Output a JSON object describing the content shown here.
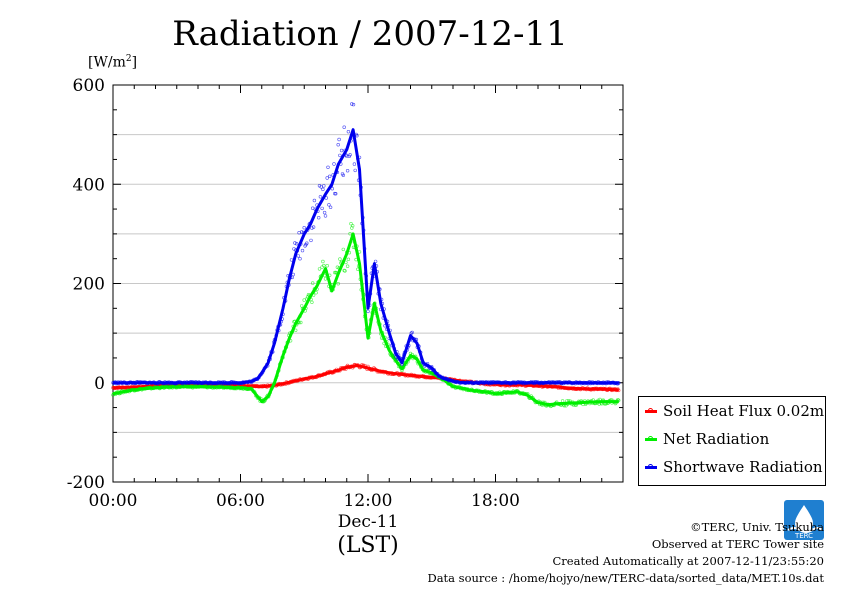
{
  "chart_data": {
    "type": "line",
    "title": "Radiation / 2007-12-11",
    "ylabel_unit": "[W/m",
    "ylabel_unit_sup": "2",
    "ylabel_unit_close": "]",
    "ylim": [
      -200,
      600
    ],
    "yticks": [
      -200,
      0,
      200,
      400,
      600
    ],
    "yticklabels": [
      "-200",
      "0",
      "200",
      "400",
      "600"
    ],
    "xlim": [
      0,
      24
    ],
    "xticks": [
      0,
      6,
      12,
      18
    ],
    "xticklabels": [
      "00:00",
      "06:00",
      "12:00",
      "18:00"
    ],
    "x_date_label": "Dec-11",
    "xlabel": "(LST)",
    "grid": true,
    "legend_position": "right-bottom-outside",
    "series": [
      {
        "name": "Soil Heat Flux 0.02m",
        "color": "#ff0000",
        "x": [
          0,
          1,
          2,
          3,
          4,
          5,
          6,
          6.5,
          7,
          7.5,
          8,
          8.5,
          9,
          9.5,
          10,
          10.5,
          11,
          11.5,
          12,
          12.5,
          13,
          13.5,
          14,
          14.5,
          15,
          15.5,
          16,
          16.5,
          17,
          17.5,
          18,
          18.5,
          19,
          19.5,
          20,
          21,
          22,
          23,
          23.8
        ],
        "y": [
          -10,
          -9,
          -6,
          -4,
          -3,
          -4,
          -6,
          -7,
          -8,
          -6,
          -2,
          3,
          8,
          12,
          18,
          24,
          31,
          35,
          30,
          24,
          20,
          17,
          15,
          13,
          11,
          9,
          6,
          3,
          0,
          -2,
          -3,
          -4,
          -4,
          -5,
          -6,
          -9,
          -12,
          -13,
          -14
        ]
      },
      {
        "name": "Net Radiation",
        "color": "#00ee00",
        "x": [
          0,
          0.5,
          1,
          2,
          3,
          4,
          5,
          6,
          6.5,
          7,
          7.3,
          7.6,
          8,
          8.3,
          8.6,
          9,
          9.3,
          9.6,
          10,
          10.3,
          10.6,
          11,
          11.3,
          11.6,
          12,
          12.3,
          12.6,
          13,
          13.3,
          13.6,
          14,
          14.3,
          14.6,
          15,
          15.3,
          15.6,
          16,
          16.5,
          17,
          17.5,
          18,
          18.5,
          19,
          19.5,
          20,
          20.5,
          21,
          22,
          23,
          23.8
        ],
        "y": [
          -22,
          -18,
          -14,
          -10,
          -8,
          -8,
          -9,
          -10,
          -12,
          -38,
          -28,
          0,
          55,
          90,
          120,
          150,
          175,
          195,
          230,
          185,
          220,
          260,
          300,
          240,
          90,
          160,
          105,
          65,
          45,
          28,
          55,
          48,
          25,
          20,
          12,
          5,
          -8,
          -12,
          -16,
          -18,
          -22,
          -20,
          -18,
          -25,
          -40,
          -44,
          -42,
          -40,
          -38,
          -38
        ]
      },
      {
        "name": "Shortwave Radiation",
        "color": "#0000ee",
        "x": [
          0,
          1,
          2,
          3,
          4,
          5,
          6,
          6.5,
          6.8,
          7,
          7.3,
          7.6,
          8,
          8.3,
          8.6,
          9,
          9.3,
          9.6,
          10,
          10.3,
          10.6,
          11,
          11.3,
          11.6,
          12,
          12.3,
          12.6,
          13,
          13.3,
          13.6,
          14,
          14.3,
          14.6,
          15,
          15.3,
          15.6,
          16,
          16.5,
          17,
          18,
          19,
          20,
          21,
          22,
          23,
          23.8
        ],
        "y": [
          0,
          0,
          0,
          0,
          0,
          0,
          0,
          2,
          8,
          20,
          40,
          80,
          150,
          210,
          260,
          300,
          320,
          350,
          380,
          400,
          440,
          470,
          510,
          430,
          150,
          240,
          160,
          100,
          60,
          40,
          95,
          80,
          40,
          30,
          15,
          8,
          3,
          0,
          0,
          0,
          0,
          0,
          0,
          0,
          0,
          0
        ]
      }
    ]
  },
  "credits": {
    "copyright": "©TERC, Univ. Tsukuba",
    "site": "Observed at TERC Tower site",
    "created": "Created Automatically at 2007-12-11/23:55:20",
    "source": "Data source : /home/hojyo/new/TERC-data/sorted_data/MET.10s.dat"
  },
  "logo_text": "TERC",
  "colors": {
    "grid": "#c8c8c8",
    "frame": "#000000"
  }
}
